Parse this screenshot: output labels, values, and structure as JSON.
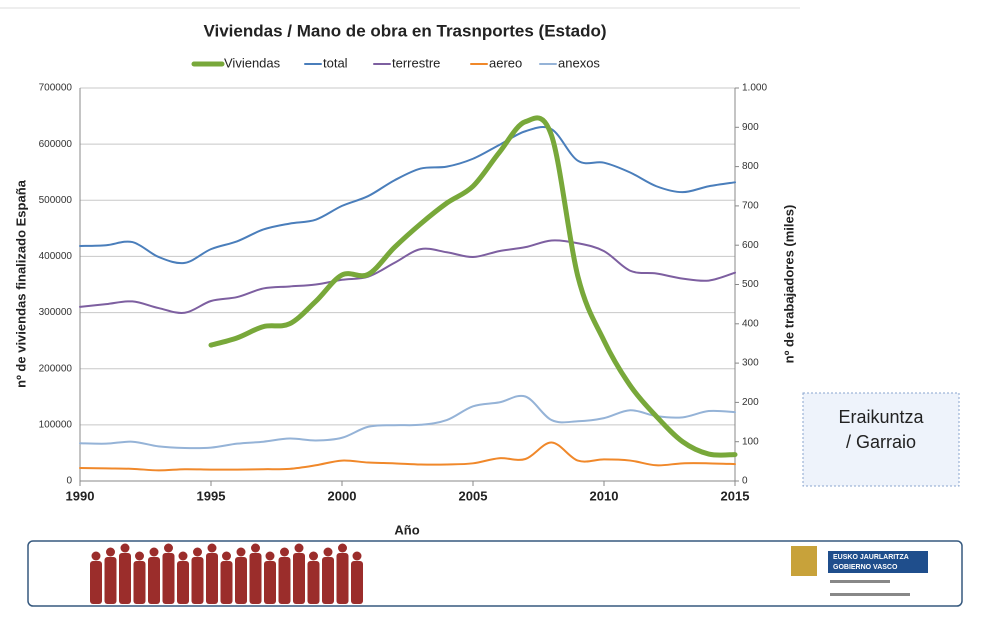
{
  "chart_data": {
    "type": "line",
    "title": "Viviendas / Mano de obra en Trasnportes (Estado)",
    "x_label": "Año",
    "y_label": "nº de viviendas finalizado España",
    "y2_label": "nº de trabajadores (miles)",
    "x": [
      1990,
      1991,
      1992,
      1993,
      1994,
      1995,
      1996,
      1997,
      1998,
      1999,
      2000,
      2001,
      2002,
      2003,
      2004,
      2005,
      2006,
      2007,
      2008,
      2009,
      2010,
      2011,
      2012,
      2013,
      2014,
      2015
    ],
    "xlim": [
      1990,
      2015
    ],
    "xticks": [
      1990,
      1995,
      2000,
      2005,
      2010,
      2015
    ],
    "ylim": [
      0,
      700000
    ],
    "yticks": [
      0,
      100000,
      200000,
      300000,
      400000,
      500000,
      600000,
      700000
    ],
    "y2lim": [
      0,
      1000
    ],
    "y2ticks": [
      0,
      100,
      200,
      300,
      400,
      500,
      600,
      700,
      800,
      900,
      {
        "value": 1000,
        "label": "1.000"
      }
    ],
    "grid": true,
    "legend": "top",
    "series": [
      {
        "name": "Viviendas",
        "color": "#78a83a",
        "width": 5,
        "values": [
          null,
          null,
          null,
          null,
          null,
          242000,
          255000,
          275000,
          280000,
          320000,
          367000,
          368000,
          416000,
          458000,
          495000,
          525000,
          585000,
          640000,
          615000,
          365000,
          250000,
          170000,
          115000,
          70000,
          48000,
          47000
        ]
      },
      {
        "name": "total",
        "color": "#4a7ebb",
        "width": 2,
        "axis": "y2",
        "values": [
          598,
          600,
          608,
          570,
          555,
          590,
          610,
          640,
          655,
          665,
          700,
          725,
          765,
          795,
          800,
          820,
          855,
          890,
          895,
          815,
          810,
          785,
          750,
          735,
          750,
          760
        ]
      },
      {
        "name": "terrestre",
        "color": "#7d5fa0",
        "width": 2,
        "axis": "y2",
        "values": [
          443,
          450,
          457,
          440,
          428,
          458,
          468,
          490,
          495,
          500,
          512,
          520,
          555,
          590,
          582,
          570,
          585,
          595,
          612,
          605,
          585,
          535,
          528,
          515,
          510,
          530
        ]
      },
      {
        "name": "aereo",
        "color": "#f0882a",
        "width": 2,
        "axis": "y2",
        "values": [
          33,
          32,
          31,
          27,
          30,
          29,
          29,
          30,
          31,
          40,
          52,
          47,
          45,
          42,
          42,
          45,
          58,
          56,
          98,
          52,
          55,
          52,
          40,
          45,
          45,
          43
        ]
      },
      {
        "name": "anexos",
        "color": "#95b3d7",
        "width": 2,
        "axis": "y2",
        "values": [
          96,
          95,
          100,
          88,
          84,
          85,
          95,
          100,
          108,
          103,
          110,
          138,
          142,
          143,
          155,
          190,
          200,
          215,
          155,
          152,
          160,
          180,
          165,
          162,
          178,
          175
        ]
      }
    ]
  },
  "slide": {
    "box_label": [
      "Eraikuntza",
      "/ Garraio"
    ],
    "logo_lines": [
      "EUSKO JAURLARITZA",
      "GOBIERNO VASCO"
    ]
  }
}
